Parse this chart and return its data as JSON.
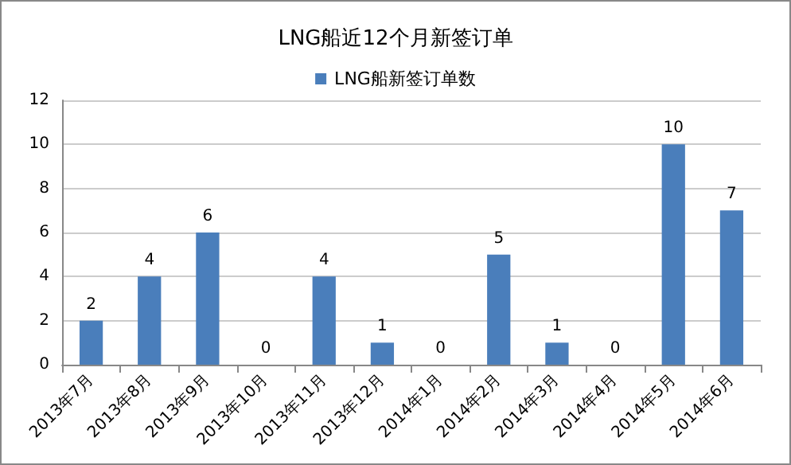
{
  "chart_data": {
    "type": "bar",
    "title": "LNG船近12个月新签订单",
    "categories": [
      "2013年7月",
      "2013年8月",
      "2013年9月",
      "2013年10月",
      "2013年11月",
      "2013年12月",
      "2014年1月",
      "2014年2月",
      "2014年3月",
      "2014年4月",
      "2014年5月",
      "2014年6月"
    ],
    "series": [
      {
        "name": "LNG船新签订单数",
        "color": "#4a7ebb",
        "values": [
          2,
          4,
          6,
          0,
          4,
          1,
          0,
          5,
          1,
          0,
          10,
          7
        ]
      }
    ],
    "ylim": [
      0,
      12
    ],
    "yticks": [
      0,
      2,
      4,
      6,
      8,
      10,
      12
    ],
    "grid": "y",
    "legend": "top",
    "data_labels": true
  }
}
